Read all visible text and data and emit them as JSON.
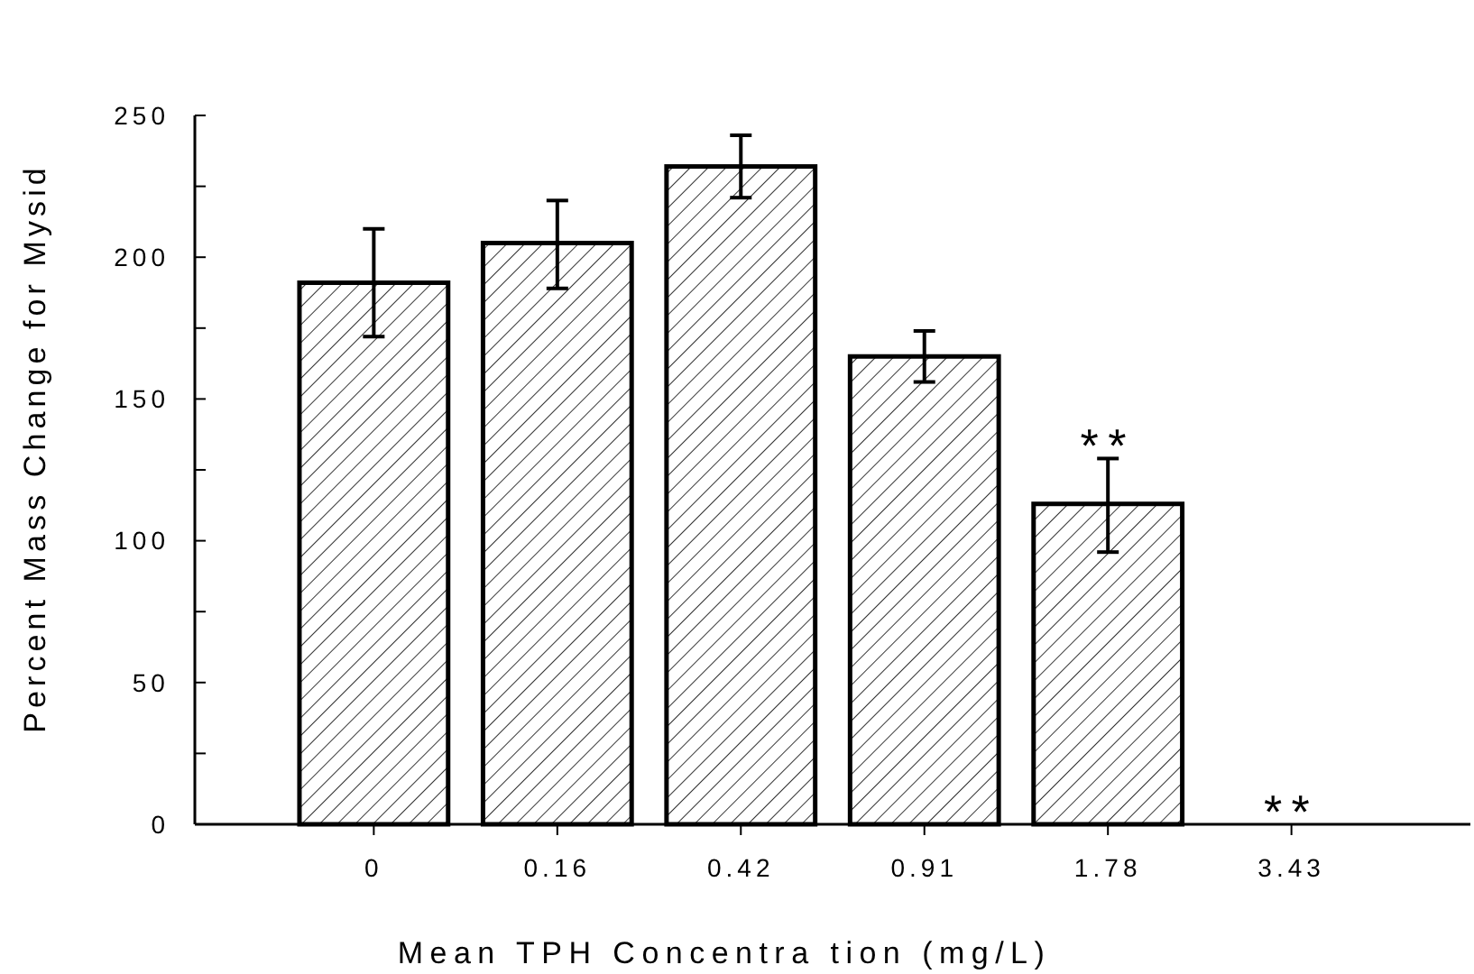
{
  "chart_data": {
    "type": "bar",
    "xlabel": "Mean TPH Concentra tion (mg/L)",
    "ylabel": "Percent Mass Change for Mysid",
    "categories": [
      "0",
      "0.16",
      "0.42",
      "0.91",
      "1.78",
      "3.43"
    ],
    "values": [
      191,
      205,
      232,
      165,
      113,
      0
    ],
    "errors": [
      19,
      [
        189,
        220
      ],
      11,
      9,
      [
        96,
        129
      ],
      null
    ],
    "color": "#000000",
    "ylim": [
      0,
      250
    ],
    "yticks": [
      0,
      {
        "value": 25,
        "label": null
      },
      50,
      {
        "value": 75,
        "label": null
      },
      100,
      {
        "value": 125,
        "label": null
      },
      150,
      {
        "value": 175,
        "label": null
      },
      200,
      {
        "value": 225,
        "label": null
      },
      250
    ],
    "annotations": [
      {
        "text": "**",
        "x": "1.78",
        "y": 129
      },
      {
        "text": "**",
        "x": "3.43",
        "y": 0
      }
    ]
  }
}
